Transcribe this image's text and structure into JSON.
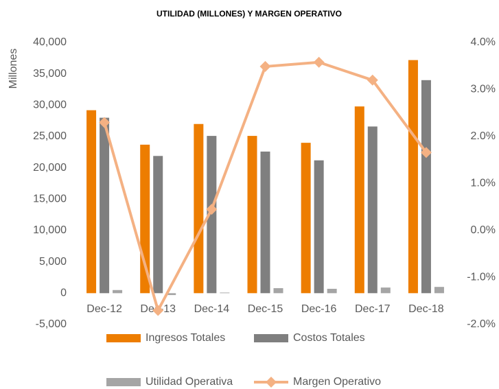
{
  "chart_data": {
    "type": "bar",
    "title": "UTILIDAD (MILLONES) Y MARGEN OPERATIVO",
    "ylabel": "Millones",
    "categories": [
      "Dec-12",
      "Dec-13",
      "Dec-14",
      "Dec-15",
      "Dec-16",
      "Dec-17",
      "Dec-18"
    ],
    "series": [
      {
        "name": "Ingresos Totales",
        "type": "bar",
        "color": "#ed7d00",
        "values": [
          29200,
          23700,
          27000,
          25100,
          24000,
          29800,
          37200
        ]
      },
      {
        "name": "Costos Totales",
        "type": "bar",
        "color": "#7f7f7f",
        "values": [
          28000,
          21900,
          25100,
          22600,
          21200,
          26600,
          34000
        ]
      },
      {
        "name": "Utilidad Operativa",
        "type": "bar",
        "color": "#a5a5a5",
        "values": [
          500,
          -300,
          100,
          800,
          700,
          900,
          1000
        ]
      },
      {
        "name": "Margen Operativo",
        "type": "line",
        "axis": "y2",
        "color": "#f4b183",
        "values": [
          2.3,
          -1.7,
          0.45,
          3.49,
          3.58,
          3.2,
          1.66
        ]
      }
    ],
    "ylim": [
      -5000,
      40000
    ],
    "yticks": [
      {
        "value": -5000,
        "label": "-5,000"
      },
      0,
      {
        "value": 5000,
        "label": "5,000"
      },
      {
        "value": 10000,
        "label": "10,000"
      },
      {
        "value": 15000,
        "label": "15,000"
      },
      {
        "value": 20000,
        "label": "20,000"
      },
      {
        "value": 25000,
        "label": "25,000"
      },
      {
        "value": 30000,
        "label": "30,000"
      },
      {
        "value": 35000,
        "label": "35,000"
      },
      {
        "value": 40000,
        "label": "40,000"
      }
    ],
    "y2lim": [
      -2,
      4
    ],
    "y2ticks": [
      {
        "value": -2,
        "label": "-2.0%"
      },
      {
        "value": -1,
        "label": "-1.0%"
      },
      {
        "value": 0,
        "label": "0.0%"
      },
      {
        "value": 1,
        "label": "1.0%"
      },
      {
        "value": 2,
        "label": "2.0%"
      },
      {
        "value": 3,
        "label": "3.0%"
      },
      {
        "value": 4,
        "label": "4.0%"
      }
    ],
    "grid": false,
    "legend": "bottom"
  }
}
